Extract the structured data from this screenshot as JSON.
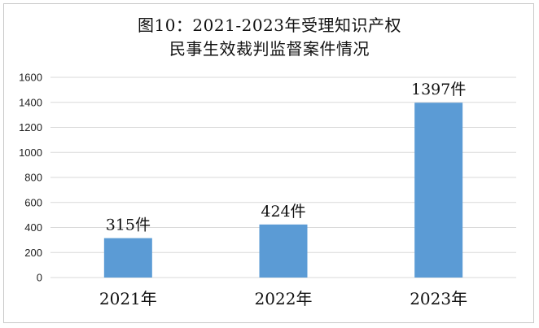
{
  "chart_data": {
    "type": "bar",
    "title_lines": [
      "图10：2021-2023年受理知识产权",
      "民事生效裁判监督案件情况"
    ],
    "categories": [
      "2021年",
      "2022年",
      "2023年"
    ],
    "values": [
      315,
      424,
      1397
    ],
    "data_labels": [
      "315件",
      "424件",
      "1397件"
    ],
    "yticks": [
      "0",
      "200",
      "400",
      "600",
      "800",
      "1000",
      "1200",
      "1400",
      "1600"
    ],
    "ylim": [
      0,
      1600
    ],
    "grid": true,
    "legend": "none",
    "bar_color": "#5b9bd5",
    "grid_color": "#d9d9d9"
  }
}
